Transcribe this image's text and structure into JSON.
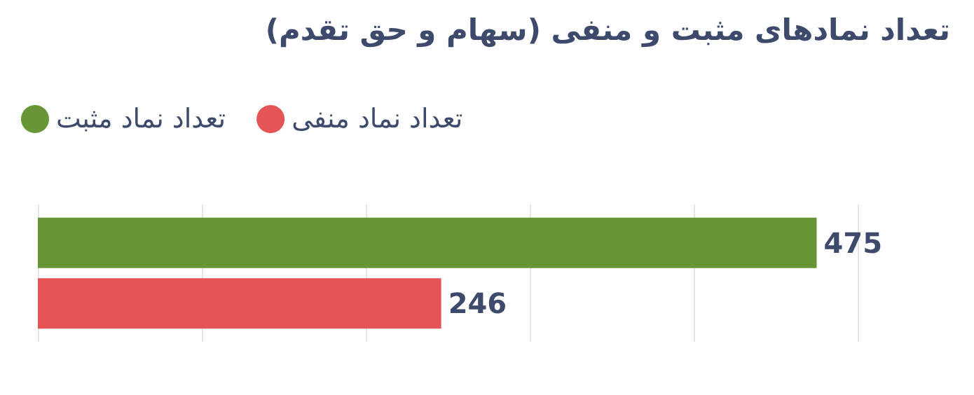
{
  "chart_data": {
    "type": "bar",
    "orientation": "horizontal",
    "title": "تعداد نمادهای مثبت و منفی (سهام و حق تقدم)",
    "categories": [
      null
    ],
    "series": [
      {
        "name": "تعداد نماد مثبت",
        "color": "#689636",
        "values": [
          475
        ]
      },
      {
        "name": "تعداد نماد منفی",
        "color": "#e65555",
        "values": [
          246
        ]
      }
    ],
    "xlim": [
      0,
      500
    ],
    "xticks": [
      {
        "value": 0,
        "label": null
      },
      {
        "value": 100,
        "label": null
      },
      {
        "value": 200,
        "label": null
      },
      {
        "value": 300,
        "label": null
      },
      {
        "value": 400,
        "label": null
      },
      {
        "value": 500,
        "label": null
      }
    ],
    "grid": "x",
    "legend": "top left",
    "data_labels": true
  }
}
